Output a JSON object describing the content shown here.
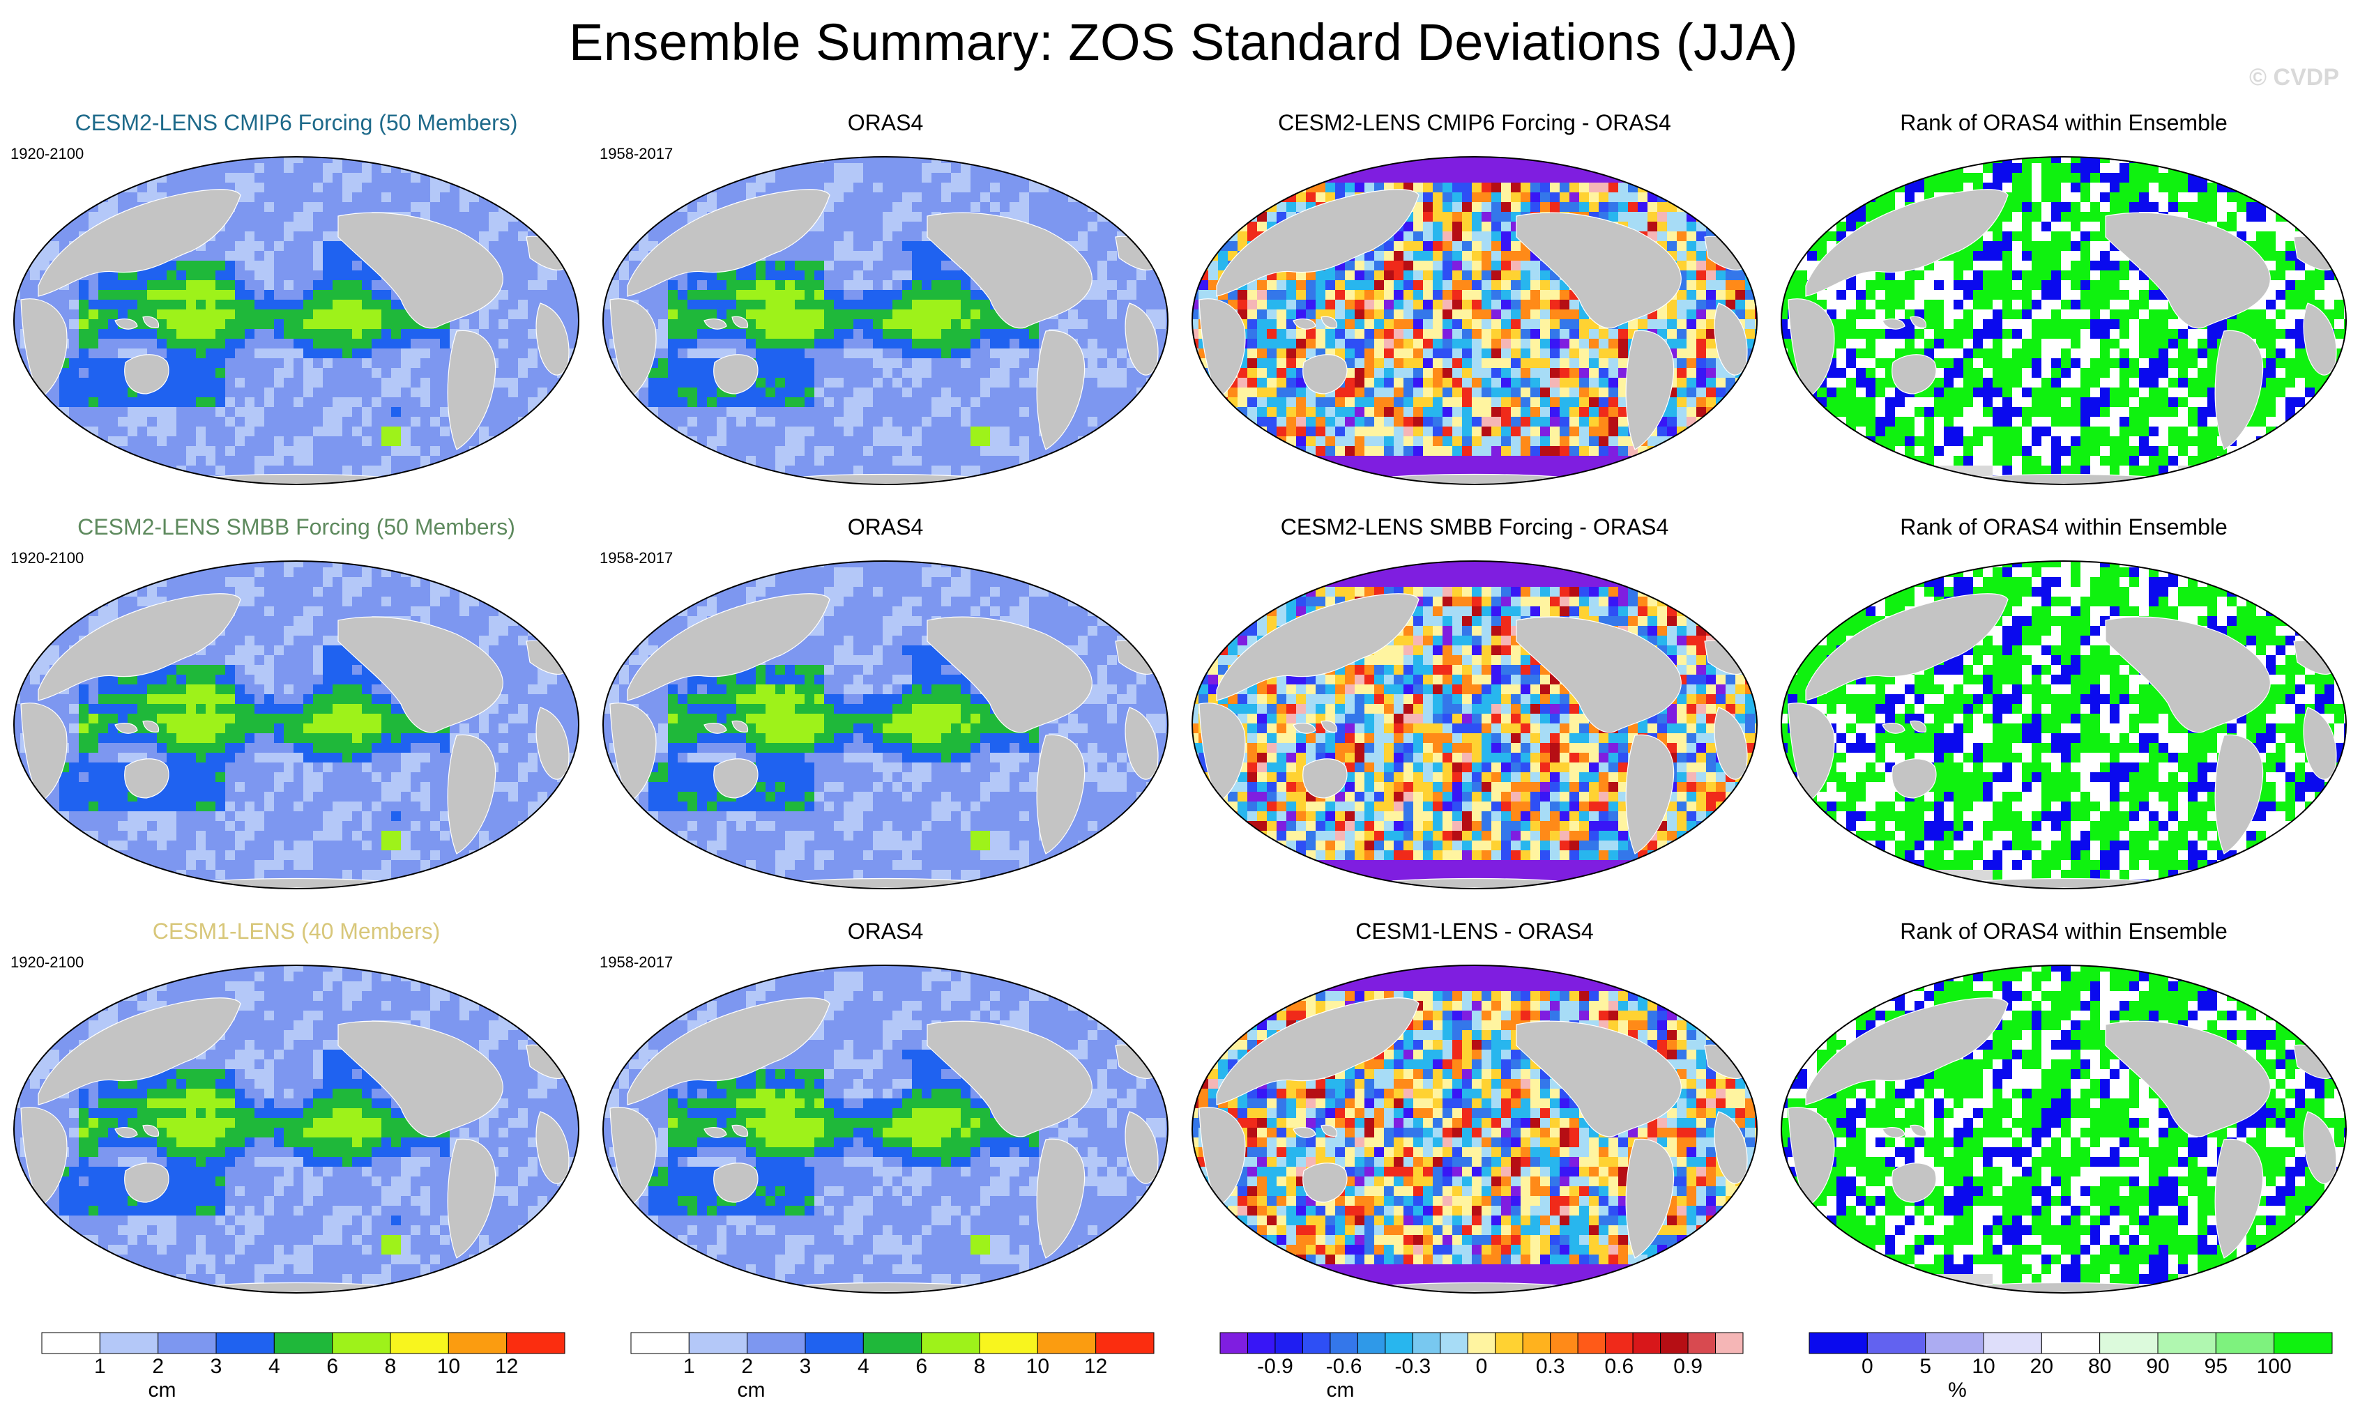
{
  "figure": {
    "title": "Ensemble Summary: ZOS Standard Deviations (JJA)",
    "watermark": "© CVDP"
  },
  "chart_data": [
    {
      "type": "heatmap",
      "id": "r1c1",
      "title": "CESM2-LENS CMIP6 Forcing (50 Members)",
      "period": "1920-2100",
      "title_color": "#1e6a8a",
      "variable": "ZOS standard deviation",
      "units": "cm",
      "season": "JJA",
      "field": "abs"
    },
    {
      "type": "heatmap",
      "id": "r1c2",
      "title": "ORAS4",
      "period": "1958-2017",
      "title_color": "#000000",
      "variable": "ZOS standard deviation",
      "units": "cm",
      "season": "JJA",
      "field": "abs"
    },
    {
      "type": "heatmap",
      "id": "r1c3",
      "title": "CESM2-LENS CMIP6 Forcing - ORAS4",
      "period": "",
      "title_color": "#000000",
      "variable": "ZOS standard deviation difference",
      "units": "cm",
      "season": "JJA",
      "field": "diff"
    },
    {
      "type": "heatmap",
      "id": "r1c4",
      "title": "Rank of ORAS4 within Ensemble",
      "period": "",
      "title_color": "#000000",
      "variable": "rank",
      "units": "%",
      "season": "JJA",
      "field": "rank"
    },
    {
      "type": "heatmap",
      "id": "r2c1",
      "title": "CESM2-LENS SMBB Forcing (50 Members)",
      "period": "1920-2100",
      "title_color": "#5e8a5e",
      "variable": "ZOS standard deviation",
      "units": "cm",
      "season": "JJA",
      "field": "abs"
    },
    {
      "type": "heatmap",
      "id": "r2c2",
      "title": "ORAS4",
      "period": "1958-2017",
      "title_color": "#000000",
      "variable": "ZOS standard deviation",
      "units": "cm",
      "season": "JJA",
      "field": "abs"
    },
    {
      "type": "heatmap",
      "id": "r2c3",
      "title": "CESM2-LENS SMBB Forcing - ORAS4",
      "period": "",
      "title_color": "#000000",
      "variable": "ZOS standard deviation difference",
      "units": "cm",
      "season": "JJA",
      "field": "diff"
    },
    {
      "type": "heatmap",
      "id": "r2c4",
      "title": "Rank of ORAS4 within Ensemble",
      "period": "",
      "title_color": "#000000",
      "variable": "rank",
      "units": "%",
      "season": "JJA",
      "field": "rank"
    },
    {
      "type": "heatmap",
      "id": "r3c1",
      "title": "CESM1-LENS (40 Members)",
      "period": "1920-2100",
      "title_color": "#d8c77a",
      "variable": "ZOS standard deviation",
      "units": "cm",
      "season": "JJA",
      "field": "abs"
    },
    {
      "type": "heatmap",
      "id": "r3c2",
      "title": "ORAS4",
      "period": "1958-2017",
      "title_color": "#000000",
      "variable": "ZOS standard deviation",
      "units": "cm",
      "season": "JJA",
      "field": "abs"
    },
    {
      "type": "heatmap",
      "id": "r3c3",
      "title": "CESM1-LENS - ORAS4",
      "period": "",
      "title_color": "#000000",
      "variable": "ZOS standard deviation difference",
      "units": "cm",
      "season": "JJA",
      "field": "diff"
    },
    {
      "type": "heatmap",
      "id": "r3c4",
      "title": "Rank of ORAS4 within Ensemble",
      "period": "",
      "title_color": "#000000",
      "variable": "rank",
      "units": "%",
      "season": "JJA",
      "field": "rank"
    }
  ],
  "colorbars": [
    {
      "id": "cb1",
      "label": "cm",
      "colors": [
        "#ffffff",
        "#b4c8f8",
        "#7d97f0",
        "#1f62f0",
        "#1fb83a",
        "#9ef21a",
        "#f8f51e",
        "#fb9c10",
        "#fb2d0f"
      ],
      "ticks": [
        "1",
        "2",
        "3",
        "4",
        "6",
        "8",
        "10",
        "12"
      ]
    },
    {
      "id": "cb2",
      "label": "cm",
      "colors": [
        "#ffffff",
        "#b4c8f8",
        "#7d97f0",
        "#1f62f0",
        "#1fb83a",
        "#9ef21a",
        "#f8f51e",
        "#fb9c10",
        "#fb2d0f"
      ],
      "ticks": [
        "1",
        "2",
        "3",
        "4",
        "6",
        "8",
        "10",
        "12"
      ]
    },
    {
      "id": "cb3",
      "label": "cm",
      "colors": [
        "#7f1ee0",
        "#3816f6",
        "#1f1ef2",
        "#2e4ff5",
        "#3477ea",
        "#2f99e8",
        "#28b6ee",
        "#78c8f0",
        "#a7dcf6",
        "#fff4a0",
        "#ffd232",
        "#ffb21e",
        "#ff8a18",
        "#ff5a18",
        "#f02a1a",
        "#d8171a",
        "#b60e14",
        "#d84a50",
        "#f5b6b6"
      ],
      "ticks": [
        "-0.9",
        "-0.6",
        "-0.3",
        "0",
        "0.3",
        "0.6",
        "0.9"
      ]
    },
    {
      "id": "cb4",
      "label": "%",
      "colors": [
        "#0a0aee",
        "#6262f0",
        "#acacf2",
        "#dedefa",
        "#ffffff",
        "#dcfadc",
        "#b0f7b0",
        "#7ef27e",
        "#0ff20f"
      ],
      "ticks": [
        "0",
        "5",
        "10",
        "20",
        "80",
        "90",
        "95",
        "100"
      ]
    }
  ],
  "palettes": {
    "ocean_abs": [
      "#b4c8f8",
      "#7d97f0",
      "#1f62f0",
      "#1fb83a",
      "#9ef21a",
      "#f8f51e",
      "#fb9c10",
      "#fb2d0f"
    ],
    "land": "#c4c4c4",
    "diff": [
      "#7f1ee0",
      "#3816f6",
      "#2e4ff5",
      "#3477ea",
      "#28b6ee",
      "#a7dcf6",
      "#fff4a0",
      "#ffd232",
      "#ff8a18",
      "#f02a1a",
      "#b60e14",
      "#f5b6b6"
    ],
    "rank": [
      "#0a0aee",
      "#ffffff",
      "#0ff20f"
    ]
  }
}
